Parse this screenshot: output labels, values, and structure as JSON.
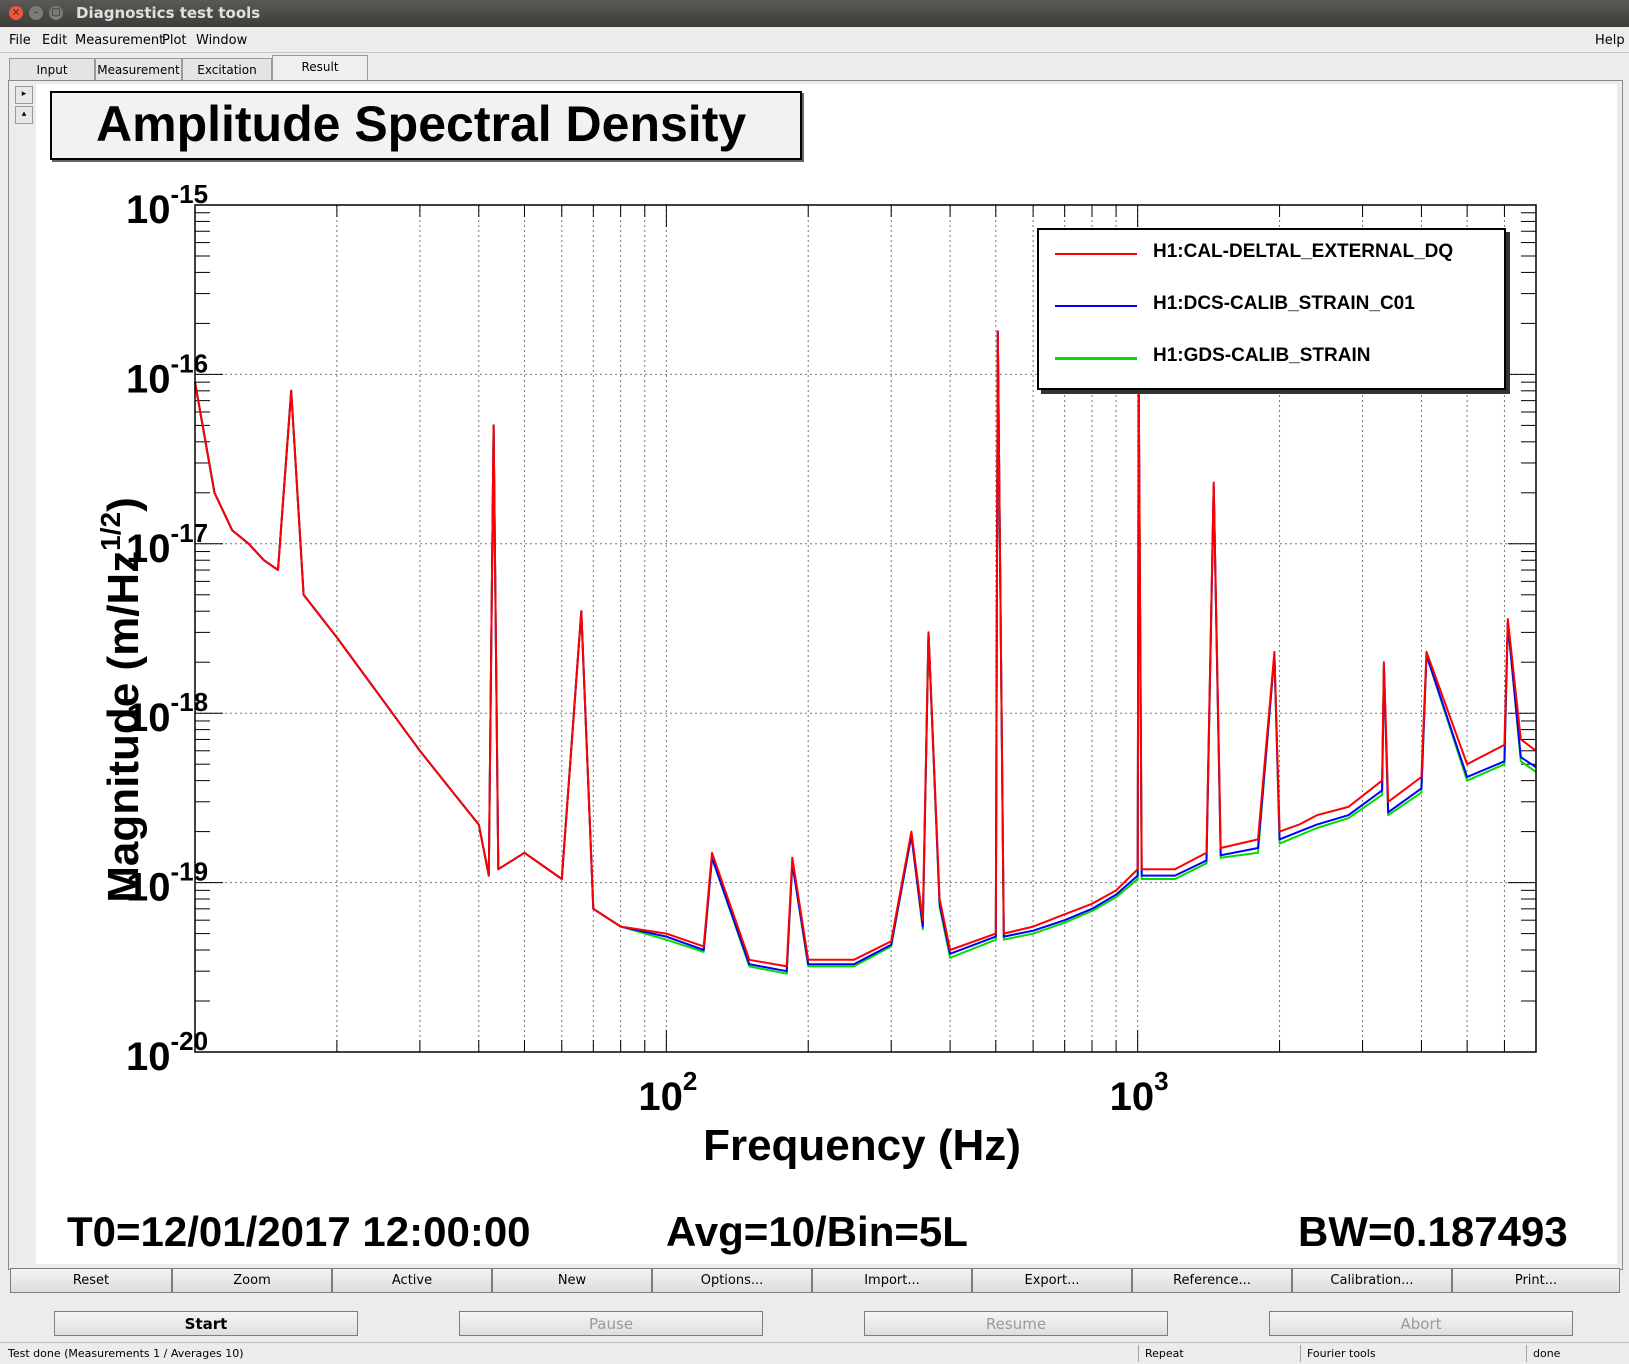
{
  "window": {
    "title": "Diagnostics test tools"
  },
  "menubar": {
    "items": [
      "File",
      "Edit",
      "Measurement",
      "Plot",
      "Window"
    ],
    "help": "Help"
  },
  "tabs": [
    {
      "label": "Input",
      "active": false
    },
    {
      "label": "Measurement",
      "active": false
    },
    {
      "label": "Excitation",
      "active": false
    },
    {
      "label": "Result",
      "active": true
    }
  ],
  "plot": {
    "title": "Amplitude Spectral Density",
    "legend": [
      {
        "name": "H1:CAL-DELTAL_EXTERNAL_DQ",
        "color": "#ff0000"
      },
      {
        "name": "H1:DCS-CALIB_STRAIN_C01",
        "color": "#0000ff"
      },
      {
        "name": "H1:GDS-CALIB_STRAIN",
        "color": "#00dd00"
      }
    ],
    "info": {
      "t0": "T0=12/01/2017 12:00:00",
      "avg": "Avg=10/Bin=5L",
      "bw": "BW=0.187493"
    }
  },
  "chart_data": {
    "type": "line",
    "title": "Amplitude Spectral Density",
    "xlabel": "Frequency (Hz)",
    "ylabel": "Magnitude (m/Hz^1/2)",
    "x_scale": "log",
    "y_scale": "log",
    "xlim": [
      10,
      7000
    ],
    "ylim": [
      1e-20,
      1e-15
    ],
    "x_ticks": [
      {
        "value": 100,
        "base": "10",
        "exp": "2"
      },
      {
        "value": 1000,
        "base": "10",
        "exp": "3"
      }
    ],
    "y_ticks": [
      {
        "value": 1e-15,
        "base": "10",
        "exp": "-15"
      },
      {
        "value": 1e-16,
        "base": "10",
        "exp": "-16"
      },
      {
        "value": 1e-17,
        "base": "10",
        "exp": "-17"
      },
      {
        "value": 1e-18,
        "base": "10",
        "exp": "-18"
      },
      {
        "value": 1e-19,
        "base": "10",
        "exp": "-19"
      },
      {
        "value": 1e-20,
        "base": "10",
        "exp": "-20"
      }
    ],
    "grid": true,
    "legend_position": "top-right",
    "series": [
      {
        "name": "H1:CAL-DELTAL_EXTERNAL_DQ",
        "color": "#ff0000",
        "points": [
          [
            10,
            9e-17
          ],
          [
            11,
            2e-17
          ],
          [
            12,
            1.2e-17
          ],
          [
            13,
            1e-17
          ],
          [
            14,
            8e-18
          ],
          [
            15,
            7e-18
          ],
          [
            16,
            8e-17
          ],
          [
            17,
            5e-18
          ],
          [
            20,
            2.8e-18
          ],
          [
            25,
            1.2e-18
          ],
          [
            30,
            6e-19
          ],
          [
            35,
            3.5e-19
          ],
          [
            40,
            2.2e-19
          ],
          [
            42,
            1.1e-19
          ],
          [
            43,
            5e-17
          ],
          [
            44,
            1.2e-19
          ],
          [
            50,
            1.5e-19
          ],
          [
            60,
            1.05e-19
          ],
          [
            66,
            4e-18
          ],
          [
            70,
            7e-20
          ],
          [
            80,
            5.5e-20
          ],
          [
            100,
            5e-20
          ],
          [
            120,
            4.2e-20
          ],
          [
            125,
            1.5e-19
          ],
          [
            150,
            3.5e-20
          ],
          [
            180,
            3.2e-20
          ],
          [
            185,
            1.4e-19
          ],
          [
            200,
            3.5e-20
          ],
          [
            250,
            3.5e-20
          ],
          [
            300,
            4.5e-20
          ],
          [
            331,
            2e-19
          ],
          [
            350,
            6e-20
          ],
          [
            360,
            3e-18
          ],
          [
            380,
            8e-20
          ],
          [
            400,
            4e-20
          ],
          [
            500,
            5e-20
          ],
          [
            505,
            1.8e-16
          ],
          [
            520,
            5e-20
          ],
          [
            600,
            5.5e-20
          ],
          [
            700,
            6.5e-20
          ],
          [
            800,
            7.5e-20
          ],
          [
            900,
            9e-20
          ],
          [
            1000,
            1.2e-19
          ],
          [
            1005,
            9e-17
          ],
          [
            1020,
            1.2e-19
          ],
          [
            1200,
            1.2e-19
          ],
          [
            1400,
            1.5e-19
          ],
          [
            1450,
            2.3e-17
          ],
          [
            1500,
            1.6e-19
          ],
          [
            1800,
            1.8e-19
          ],
          [
            1950,
            2.3e-18
          ],
          [
            2000,
            2e-19
          ],
          [
            2200,
            2.2e-19
          ],
          [
            2400,
            2.5e-19
          ],
          [
            2800,
            2.8e-19
          ],
          [
            3300,
            4e-19
          ],
          [
            3330,
            2e-18
          ],
          [
            3400,
            3e-19
          ],
          [
            4000,
            4.2e-19
          ],
          [
            4100,
            2.3e-18
          ],
          [
            5000,
            5e-19
          ],
          [
            6000,
            6.5e-19
          ],
          [
            6100,
            3.6e-18
          ],
          [
            6500,
            7e-19
          ],
          [
            7000,
            6e-19
          ]
        ]
      },
      {
        "name": "H1:DCS-CALIB_STRAIN_C01",
        "color": "#0000ff",
        "points": [
          [
            10,
            9e-17
          ],
          [
            11,
            2e-17
          ],
          [
            12,
            1.2e-17
          ],
          [
            13,
            1e-17
          ],
          [
            14,
            8e-18
          ],
          [
            15,
            7e-18
          ],
          [
            16,
            8e-17
          ],
          [
            17,
            5e-18
          ],
          [
            20,
            2.8e-18
          ],
          [
            25,
            1.2e-18
          ],
          [
            30,
            6e-19
          ],
          [
            35,
            3.5e-19
          ],
          [
            40,
            2.2e-19
          ],
          [
            42,
            1.1e-19
          ],
          [
            43,
            5e-17
          ],
          [
            44,
            1.2e-19
          ],
          [
            50,
            1.5e-19
          ],
          [
            60,
            1.05e-19
          ],
          [
            66,
            4e-18
          ],
          [
            70,
            7e-20
          ],
          [
            80,
            5.5e-20
          ],
          [
            100,
            4.8e-20
          ],
          [
            120,
            4e-20
          ],
          [
            125,
            1.4e-19
          ],
          [
            150,
            3.3e-20
          ],
          [
            180,
            3e-20
          ],
          [
            185,
            1.3e-19
          ],
          [
            200,
            3.3e-20
          ],
          [
            250,
            3.3e-20
          ],
          [
            300,
            4.3e-20
          ],
          [
            331,
            1.9e-19
          ],
          [
            350,
            5.5e-20
          ],
          [
            360,
            3e-18
          ],
          [
            380,
            7.5e-20
          ],
          [
            400,
            3.8e-20
          ],
          [
            500,
            4.8e-20
          ],
          [
            505,
            1.8e-16
          ],
          [
            520,
            4.8e-20
          ],
          [
            600,
            5.2e-20
          ],
          [
            700,
            6e-20
          ],
          [
            800,
            7e-20
          ],
          [
            900,
            8.5e-20
          ],
          [
            1000,
            1.1e-19
          ],
          [
            1005,
            9e-17
          ],
          [
            1020,
            1.1e-19
          ],
          [
            1200,
            1.1e-19
          ],
          [
            1400,
            1.35e-19
          ],
          [
            1450,
            2.2e-17
          ],
          [
            1500,
            1.45e-19
          ],
          [
            1800,
            1.6e-19
          ],
          [
            1950,
            2.2e-18
          ],
          [
            2000,
            1.8e-19
          ],
          [
            2200,
            2e-19
          ],
          [
            2400,
            2.2e-19
          ],
          [
            2800,
            2.5e-19
          ],
          [
            3300,
            3.5e-19
          ],
          [
            3330,
            1.9e-18
          ],
          [
            3400,
            2.6e-19
          ],
          [
            4000,
            3.6e-19
          ],
          [
            4100,
            2.2e-18
          ],
          [
            5000,
            4.2e-19
          ],
          [
            6000,
            5.2e-19
          ],
          [
            6100,
            3.4e-18
          ],
          [
            6500,
            5.5e-19
          ],
          [
            7000,
            4.8e-19
          ]
        ]
      },
      {
        "name": "H1:GDS-CALIB_STRAIN",
        "color": "#00dd00",
        "points": [
          [
            10,
            9e-17
          ],
          [
            11,
            2e-17
          ],
          [
            12,
            1.2e-17
          ],
          [
            13,
            1e-17
          ],
          [
            14,
            8e-18
          ],
          [
            15,
            7e-18
          ],
          [
            16,
            8e-17
          ],
          [
            17,
            5e-18
          ],
          [
            20,
            2.8e-18
          ],
          [
            25,
            1.2e-18
          ],
          [
            30,
            6e-19
          ],
          [
            35,
            3.5e-19
          ],
          [
            40,
            2.2e-19
          ],
          [
            42,
            1.1e-19
          ],
          [
            43,
            5e-17
          ],
          [
            44,
            1.2e-19
          ],
          [
            50,
            1.5e-19
          ],
          [
            60,
            1.05e-19
          ],
          [
            66,
            4e-18
          ],
          [
            70,
            7e-20
          ],
          [
            80,
            5.5e-20
          ],
          [
            100,
            4.6e-20
          ],
          [
            120,
            3.9e-20
          ],
          [
            125,
            1.4e-19
          ],
          [
            150,
            3.2e-20
          ],
          [
            180,
            2.9e-20
          ],
          [
            185,
            1.3e-19
          ],
          [
            200,
            3.2e-20
          ],
          [
            250,
            3.2e-20
          ],
          [
            300,
            4.2e-20
          ],
          [
            331,
            1.9e-19
          ],
          [
            350,
            5.3e-20
          ],
          [
            360,
            3e-18
          ],
          [
            380,
            7.2e-20
          ],
          [
            400,
            3.6e-20
          ],
          [
            500,
            4.6e-20
          ],
          [
            505,
            1.8e-16
          ],
          [
            520,
            4.6e-20
          ],
          [
            600,
            5e-20
          ],
          [
            700,
            5.8e-20
          ],
          [
            800,
            6.8e-20
          ],
          [
            900,
            8.2e-20
          ],
          [
            1000,
            1.05e-19
          ],
          [
            1005,
            9e-17
          ],
          [
            1020,
            1.05e-19
          ],
          [
            1200,
            1.05e-19
          ],
          [
            1400,
            1.3e-19
          ],
          [
            1450,
            2.2e-17
          ],
          [
            1500,
            1.4e-19
          ],
          [
            1800,
            1.5e-19
          ],
          [
            1950,
            2.2e-18
          ],
          [
            2000,
            1.7e-19
          ],
          [
            2200,
            1.9e-19
          ],
          [
            2400,
            2.1e-19
          ],
          [
            2800,
            2.4e-19
          ],
          [
            3300,
            3.3e-19
          ],
          [
            3330,
            1.9e-18
          ],
          [
            3400,
            2.5e-19
          ],
          [
            4000,
            3.4e-19
          ],
          [
            4100,
            2.2e-18
          ],
          [
            5000,
            4e-19
          ],
          [
            6000,
            5e-19
          ],
          [
            6100,
            3.4e-18
          ],
          [
            6500,
            5.2e-19
          ],
          [
            7000,
            4.5e-19
          ]
        ]
      }
    ]
  },
  "toolbar": {
    "buttons": [
      "Reset",
      "Zoom",
      "Active",
      "New",
      "Options...",
      "Import...",
      "Export...",
      "Reference...",
      "Calibration...",
      "Print..."
    ]
  },
  "actions": {
    "start": "Start",
    "pause": "Pause",
    "resume": "Resume",
    "abort": "Abort"
  },
  "status": {
    "message": "Test done (Measurements 1 / Averages 10)",
    "repeat": "Repeat",
    "fourier": "Fourier tools",
    "state": "done"
  }
}
